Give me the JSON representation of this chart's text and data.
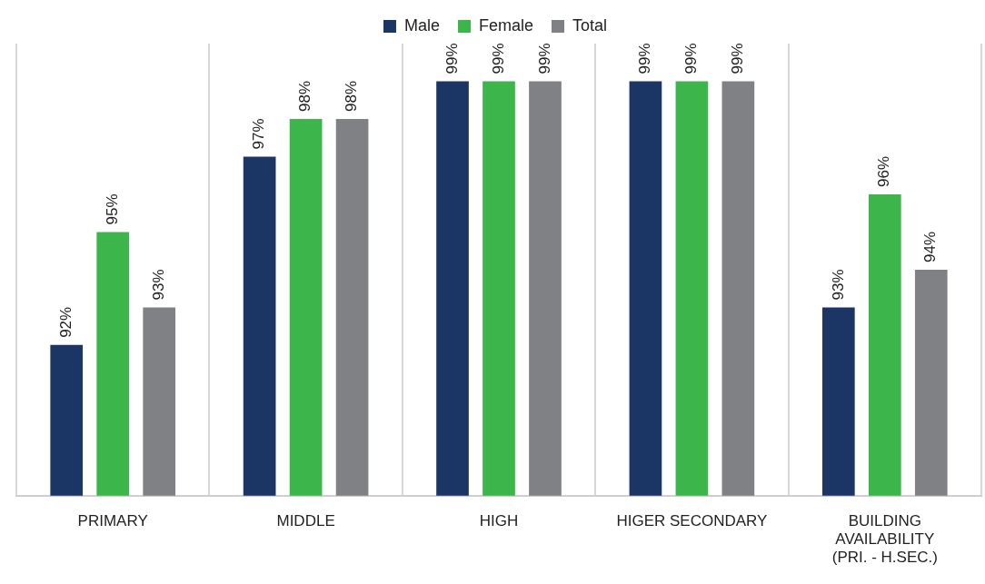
{
  "chart_data": {
    "type": "bar",
    "categories": [
      "PRIMARY",
      "MIDDLE",
      "HIGH",
      "HIGER SECONDARY",
      "BUILDING AVAILABILITY (PRI. - H.SEC.)"
    ],
    "series": [
      {
        "name": "Male",
        "color": "#1b3564",
        "values": [
          92,
          97,
          99,
          99,
          93
        ],
        "value_labels": [
          "92%",
          "97%",
          "99%",
          "99%",
          "93%"
        ]
      },
      {
        "name": "Female",
        "color": "#3cb54a",
        "values": [
          95,
          98,
          99,
          99,
          96
        ],
        "value_labels": [
          "95%",
          "98%",
          "99%",
          "99%",
          "96%"
        ]
      },
      {
        "name": "Total",
        "color": "#808184",
        "values": [
          93,
          98,
          99,
          99,
          94
        ],
        "value_labels": [
          "93%",
          "98%",
          "99%",
          "99%",
          "94%"
        ]
      }
    ],
    "ylim": [
      88,
      100
    ],
    "tick_labels": "x",
    "grid": "x",
    "legend": "top"
  }
}
